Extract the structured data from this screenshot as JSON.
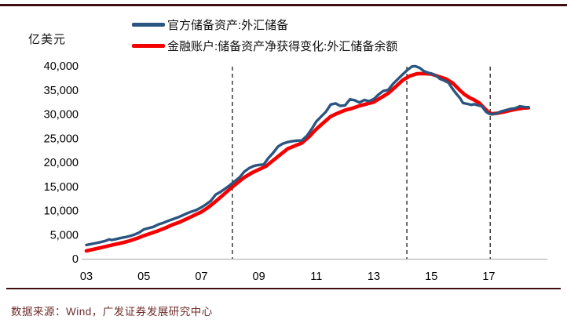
{
  "header": {
    "unit_label": "亿美元"
  },
  "footer": {
    "source_text": "数据来源：Wind，广发证券发展研究中心"
  },
  "colors": {
    "top_rule": "#400d10",
    "footer_rule": "#400d10",
    "source_text": "#702c2c",
    "axis": "#b8b8b8",
    "dashed_line": "#1a1a1a",
    "tick_text": "#000000",
    "blue_series": "#2b5581",
    "red_series": "#f40000"
  },
  "chart_data": {
    "type": "line",
    "title": "",
    "xlabel": "",
    "ylabel": "亿美元",
    "ylim": [
      0,
      40000
    ],
    "xlim": [
      2002.85,
      2018.6
    ],
    "grid": false,
    "legend_position": "top",
    "y_ticks": [
      {
        "value": 0,
        "label": "0"
      },
      {
        "value": 5000,
        "label": "5,000"
      },
      {
        "value": 10000,
        "label": "10,000"
      },
      {
        "value": 15000,
        "label": "15,000"
      },
      {
        "value": 20000,
        "label": "20,000"
      },
      {
        "value": 25000,
        "label": "25,000"
      },
      {
        "value": 30000,
        "label": "30,000"
      },
      {
        "value": 35000,
        "label": "35,000"
      },
      {
        "value": 40000,
        "label": "40,000"
      }
    ],
    "x_ticks": [
      {
        "year": 2003,
        "label": "03"
      },
      {
        "year": 2005,
        "label": "05"
      },
      {
        "year": 2007,
        "label": "07"
      },
      {
        "year": 2009,
        "label": "09"
      },
      {
        "year": 2011,
        "label": "11"
      },
      {
        "year": 2013,
        "label": "13"
      },
      {
        "year": 2015,
        "label": "15"
      },
      {
        "year": 2017,
        "label": "17"
      }
    ],
    "dashed_vlines_years": [
      2008.08,
      2014.15,
      2017.05
    ],
    "series": [
      {
        "name": "官方储备资产:外汇储备",
        "color": "#2b5581",
        "stroke_width": 3.4,
        "points": [
          [
            2003.0,
            2860
          ],
          [
            2003.17,
            3060
          ],
          [
            2003.33,
            3250
          ],
          [
            2003.5,
            3460
          ],
          [
            2003.67,
            3720
          ],
          [
            2003.79,
            4010
          ],
          [
            2003.88,
            3900
          ],
          [
            2004.0,
            4030
          ],
          [
            2004.17,
            4270
          ],
          [
            2004.33,
            4450
          ],
          [
            2004.5,
            4700
          ],
          [
            2004.67,
            5010
          ],
          [
            2004.83,
            5420
          ],
          [
            2005.0,
            6100
          ],
          [
            2005.17,
            6360
          ],
          [
            2005.33,
            6620
          ],
          [
            2005.5,
            7110
          ],
          [
            2005.67,
            7430
          ],
          [
            2005.83,
            7830
          ],
          [
            2006.0,
            8190
          ],
          [
            2006.17,
            8560
          ],
          [
            2006.33,
            8960
          ],
          [
            2006.5,
            9410
          ],
          [
            2006.67,
            9810
          ],
          [
            2006.83,
            10120
          ],
          [
            2007.0,
            10660
          ],
          [
            2007.17,
            11310
          ],
          [
            2007.33,
            12020
          ],
          [
            2007.5,
            13320
          ],
          [
            2007.67,
            13880
          ],
          [
            2007.83,
            14560
          ],
          [
            2008.0,
            15280
          ],
          [
            2008.17,
            16110
          ],
          [
            2008.33,
            16900
          ],
          [
            2008.5,
            18090
          ],
          [
            2008.67,
            18820
          ],
          [
            2008.83,
            19250
          ],
          [
            2009.0,
            19460
          ],
          [
            2009.17,
            19540
          ],
          [
            2009.33,
            20880
          ],
          [
            2009.5,
            21990
          ],
          [
            2009.67,
            23290
          ],
          [
            2009.83,
            23870
          ],
          [
            2010.0,
            24200
          ],
          [
            2010.17,
            24370
          ],
          [
            2010.33,
            24510
          ],
          [
            2010.5,
            24540
          ],
          [
            2010.67,
            25480
          ],
          [
            2010.83,
            26830
          ],
          [
            2011.0,
            28470
          ],
          [
            2011.17,
            29500
          ],
          [
            2011.33,
            30450
          ],
          [
            2011.5,
            31980
          ],
          [
            2011.67,
            32210
          ],
          [
            2011.83,
            31710
          ],
          [
            2012.0,
            31810
          ],
          [
            2012.17,
            33050
          ],
          [
            2012.33,
            32880
          ],
          [
            2012.5,
            32400
          ],
          [
            2012.67,
            32920
          ],
          [
            2012.83,
            32680
          ],
          [
            2013.0,
            33120
          ],
          [
            2013.17,
            34080
          ],
          [
            2013.33,
            34790
          ],
          [
            2013.5,
            35010
          ],
          [
            2013.67,
            36270
          ],
          [
            2013.83,
            37220
          ],
          [
            2014.0,
            38210
          ],
          [
            2014.17,
            39150
          ],
          [
            2014.33,
            39880
          ],
          [
            2014.45,
            39930
          ],
          [
            2014.6,
            39560
          ],
          [
            2014.75,
            38880
          ],
          [
            2014.9,
            38550
          ],
          [
            2015.0,
            38430
          ],
          [
            2015.17,
            37970
          ],
          [
            2015.3,
            37300
          ],
          [
            2015.45,
            36940
          ],
          [
            2015.6,
            36510
          ],
          [
            2015.7,
            35570
          ],
          [
            2015.85,
            34380
          ],
          [
            2016.0,
            33300
          ],
          [
            2016.1,
            32310
          ],
          [
            2016.25,
            32110
          ],
          [
            2016.4,
            31920
          ],
          [
            2016.5,
            32060
          ],
          [
            2016.6,
            31850
          ],
          [
            2016.75,
            31660
          ],
          [
            2016.9,
            30520
          ],
          [
            2017.0,
            30110
          ],
          [
            2017.08,
            29980
          ],
          [
            2017.25,
            30090
          ],
          [
            2017.42,
            30540
          ],
          [
            2017.6,
            30810
          ],
          [
            2017.75,
            31080
          ],
          [
            2017.92,
            31200
          ],
          [
            2018.08,
            31620
          ],
          [
            2018.25,
            31450
          ],
          [
            2018.38,
            31430
          ]
        ]
      },
      {
        "name": "金融账户:储备资产净获得变化:外汇储备余额",
        "color": "#f40000",
        "stroke_width": 4.6,
        "points": [
          [
            2003.0,
            1650
          ],
          [
            2003.25,
            1960
          ],
          [
            2003.5,
            2300
          ],
          [
            2003.75,
            2650
          ],
          [
            2004.0,
            2990
          ],
          [
            2004.25,
            3310
          ],
          [
            2004.5,
            3700
          ],
          [
            2004.75,
            4210
          ],
          [
            2005.0,
            4800
          ],
          [
            2005.25,
            5300
          ],
          [
            2005.5,
            5810
          ],
          [
            2005.75,
            6410
          ],
          [
            2006.0,
            7070
          ],
          [
            2006.25,
            7610
          ],
          [
            2006.5,
            8310
          ],
          [
            2006.75,
            9000
          ],
          [
            2007.0,
            9710
          ],
          [
            2007.25,
            10710
          ],
          [
            2007.5,
            11900
          ],
          [
            2007.75,
            13200
          ],
          [
            2008.0,
            14500
          ],
          [
            2008.25,
            15710
          ],
          [
            2008.5,
            16900
          ],
          [
            2008.75,
            17810
          ],
          [
            2009.0,
            18510
          ],
          [
            2009.25,
            19210
          ],
          [
            2009.5,
            20400
          ],
          [
            2009.75,
            21610
          ],
          [
            2010.0,
            22800
          ],
          [
            2010.25,
            23410
          ],
          [
            2010.5,
            24010
          ],
          [
            2010.75,
            25310
          ],
          [
            2011.0,
            26900
          ],
          [
            2011.25,
            28210
          ],
          [
            2011.5,
            29510
          ],
          [
            2011.75,
            30210
          ],
          [
            2012.0,
            30810
          ],
          [
            2012.25,
            31210
          ],
          [
            2012.5,
            31710
          ],
          [
            2012.75,
            32110
          ],
          [
            2013.0,
            32510
          ],
          [
            2013.25,
            33410
          ],
          [
            2013.5,
            34310
          ],
          [
            2013.75,
            35610
          ],
          [
            2014.0,
            37010
          ],
          [
            2014.25,
            37910
          ],
          [
            2014.5,
            38350
          ],
          [
            2014.75,
            38410
          ],
          [
            2015.0,
            38310
          ],
          [
            2015.25,
            37810
          ],
          [
            2015.5,
            37310
          ],
          [
            2015.75,
            36410
          ],
          [
            2016.0,
            34910
          ],
          [
            2016.17,
            34010
          ],
          [
            2016.33,
            33410
          ],
          [
            2016.5,
            32910
          ],
          [
            2016.67,
            32310
          ],
          [
            2016.83,
            31310
          ],
          [
            2017.0,
            30310
          ],
          [
            2017.1,
            30050
          ],
          [
            2017.3,
            30180
          ],
          [
            2017.5,
            30400
          ],
          [
            2017.75,
            30760
          ],
          [
            2018.0,
            31060
          ],
          [
            2018.2,
            31260
          ],
          [
            2018.38,
            31300
          ]
        ]
      }
    ]
  }
}
